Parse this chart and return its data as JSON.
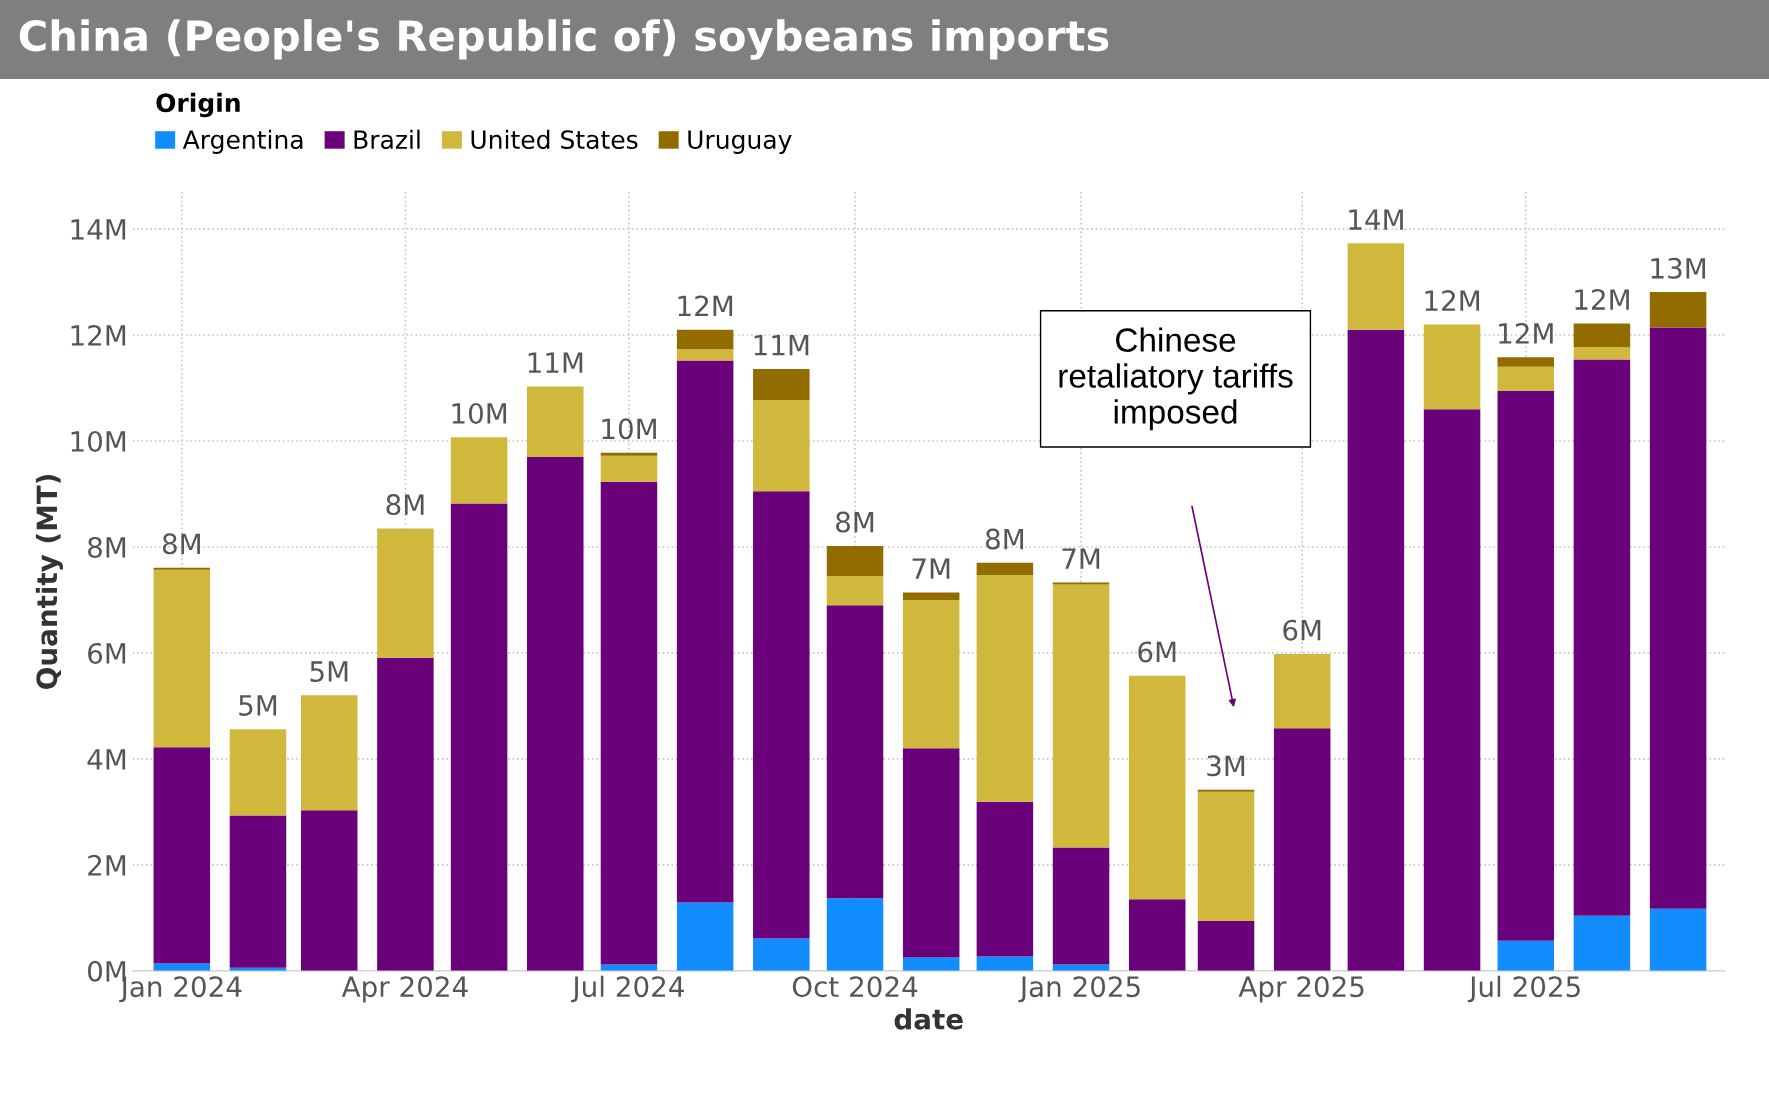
{
  "chart_data": {
    "type": "bar",
    "stacked": true,
    "title": "China (People's Republic of) soybeans imports",
    "xlabel": "date",
    "ylabel": "Quantity (MT)",
    "legend_title": "Origin",
    "legend": "top left",
    "grid": true,
    "line_style": "dotted",
    "x": [
      "2024-01",
      "2024-02",
      "2024-03",
      "2024-04",
      "2024-05",
      "2024-06",
      "2024-07",
      "2024-08",
      "2024-09",
      "2024-10",
      "2024-11",
      "2024-12",
      "2025-01",
      "2025-02",
      "2025-03",
      "2025-04",
      "2025-05",
      "2025-06",
      "2025-07",
      "2025-08",
      "2025-09"
    ],
    "series": [
      {
        "name": "Argentina",
        "color": "#118dff",
        "values": [
          0.14,
          0.06,
          0,
          0,
          0,
          0,
          0.12,
          1.29,
          0.61,
          1.37,
          0.25,
          0.27,
          0.12,
          0,
          0,
          0,
          0,
          0,
          0.57,
          1.04,
          1.17
        ]
      },
      {
        "name": "Brazil",
        "color": "#6b007b",
        "values": [
          4.08,
          2.87,
          3.03,
          5.91,
          8.82,
          9.7,
          9.11,
          10.23,
          8.44,
          5.53,
          3.95,
          2.92,
          2.21,
          1.35,
          0.94,
          4.58,
          12.1,
          10.6,
          10.38,
          10.5,
          10.97
        ]
      },
      {
        "name": "United States",
        "color": "#d0b83c",
        "values": [
          3.35,
          1.63,
          2.17,
          2.44,
          1.25,
          1.33,
          0.49,
          0.21,
          1.72,
          0.55,
          2.8,
          4.28,
          4.96,
          4.22,
          2.44,
          1.4,
          1.63,
          1.6,
          0.45,
          0.23,
          0
        ]
      },
      {
        "name": "Uruguay",
        "color": "#936c00",
        "values": [
          0.04,
          0,
          0,
          0,
          0,
          0,
          0.06,
          0.37,
          0.59,
          0.57,
          0.14,
          0.23,
          0.04,
          0,
          0.04,
          0,
          0,
          0,
          0.18,
          0.45,
          0.67
        ]
      }
    ],
    "totals": [
      "8M",
      "5M",
      "5M",
      "8M",
      "10M",
      "11M",
      "10M",
      "12M",
      "11M",
      "8M",
      "7M",
      "8M",
      "7M",
      "6M",
      "3M",
      "6M",
      "14M",
      "12M",
      "12M",
      "12M",
      "13M"
    ],
    "ylim": [
      0,
      14.7
    ],
    "yticks": [
      {
        "value": 0,
        "label": "0M"
      },
      {
        "value": 2,
        "label": "2M"
      },
      {
        "value": 4,
        "label": "4M"
      },
      {
        "value": 6,
        "label": "6M"
      },
      {
        "value": 8,
        "label": "8M"
      },
      {
        "value": 10,
        "label": "10M"
      },
      {
        "value": 12,
        "label": "12M"
      },
      {
        "value": 14,
        "label": "14M"
      }
    ],
    "xlim": [
      "2023-12-12",
      "2025-09-20"
    ],
    "xticks": [
      {
        "value": "2024-01",
        "label": "Jan 2024"
      },
      {
        "value": "2024-04",
        "label": "Apr 2024"
      },
      {
        "value": "2024-07",
        "label": "Jul 2024"
      },
      {
        "value": "2024-10",
        "label": "Oct 2024"
      },
      {
        "value": "2025-01",
        "label": "Jan 2025"
      },
      {
        "value": "2025-04",
        "label": "Apr 2025"
      },
      {
        "value": "2025-07",
        "label": "Jul 2025"
      }
    ],
    "annotations": [
      "Chinese\nretaliatory tariffs\nimposed"
    ]
  }
}
